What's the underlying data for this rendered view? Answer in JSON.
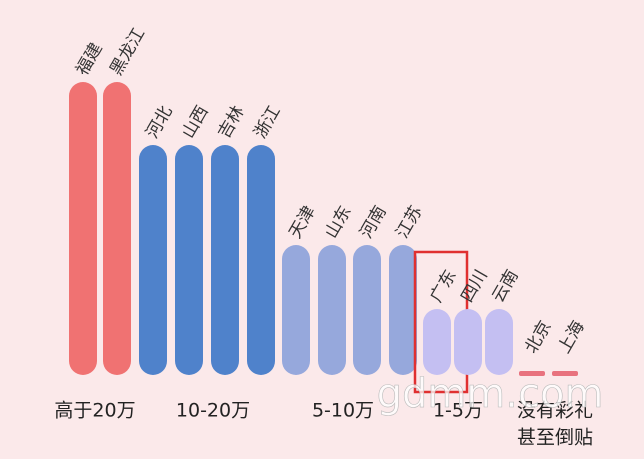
{
  "groups": [
    {
      "label": [
        "高于20万"
      ],
      "provinces": [
        "福建",
        "黑龙江"
      ],
      "color": "#f07272"
    },
    {
      "label": [
        "10-20万"
      ],
      "provinces": [
        "河北",
        "山西",
        "吉林",
        "浙江"
      ],
      "color": "#4f82cb"
    },
    {
      "label": [
        "5-10万"
      ],
      "provinces": [
        "天津",
        "山东",
        "河南",
        "江苏"
      ],
      "color": "#96a8dc"
    },
    {
      "label": [
        "1-5万"
      ],
      "provinces": [
        "广东",
        "四川",
        "云南"
      ],
      "color": "#c4bff2"
    },
    {
      "label": [
        "没有彩礼",
        "甚至倒贴"
      ],
      "provinces": [
        "北京",
        "上海"
      ],
      "color": "#e8727e"
    }
  ],
  "highlight": "广东",
  "watermark": "gdmm.com"
}
